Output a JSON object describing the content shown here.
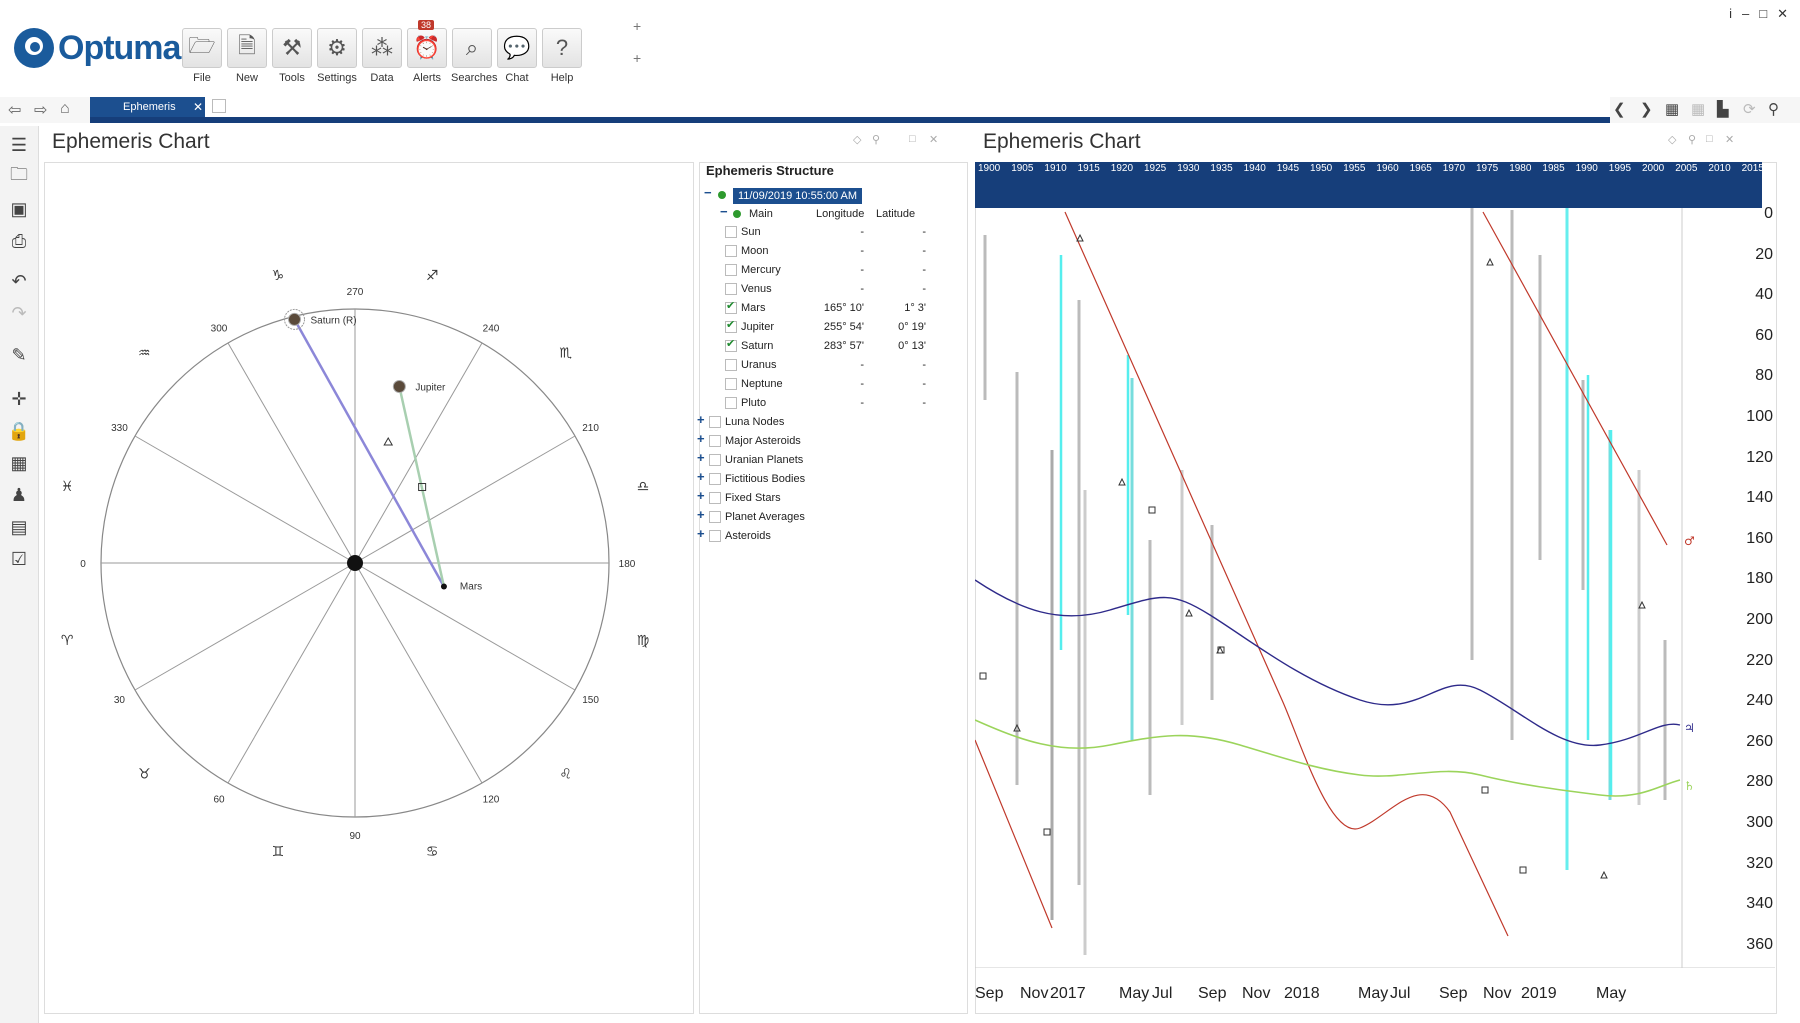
{
  "app": {
    "logo_text": "Optuma"
  },
  "toolbar": {
    "buttons": [
      {
        "label": "File",
        "icon": "folder-icon",
        "glyph": "🗁"
      },
      {
        "label": "New",
        "icon": "new-chart-icon",
        "glyph": "🗎"
      },
      {
        "label": "Tools",
        "icon": "tools-icon",
        "glyph": "⚒"
      },
      {
        "label": "Settings",
        "icon": "settings-icon",
        "glyph": "⚙"
      },
      {
        "label": "Data",
        "icon": "data-icon",
        "glyph": "⁂"
      },
      {
        "label": "Alerts",
        "icon": "alarm-icon",
        "glyph": "⏰",
        "badge": "38"
      },
      {
        "label": "Searches",
        "icon": "search-icon",
        "glyph": "⌕"
      },
      {
        "label": "Chat",
        "icon": "chat-icon",
        "glyph": "💬"
      },
      {
        "label": "Help",
        "icon": "help-icon",
        "glyph": "?"
      }
    ]
  },
  "window_controls": {
    "info": "i",
    "minimize": "–",
    "maximize": "□",
    "close": "✕"
  },
  "tabs": {
    "active": "Ephemeris",
    "close": "✕"
  },
  "left_panel": {
    "title": "Ephemeris Chart"
  },
  "wheel": {
    "degree_labels": [
      "270",
      "240",
      "210",
      "180",
      "150",
      "120",
      "90",
      "60",
      "30",
      "0",
      "330",
      "300"
    ],
    "zodiac_glyphs": [
      "♑",
      "♏",
      "♎",
      "♍",
      "♌",
      "♋",
      "♊",
      "♉",
      "♈",
      "♓",
      "♒",
      "♐"
    ],
    "planets": [
      {
        "name": "Saturn (R)",
        "longitude_deg": 283.95
      },
      {
        "name": "Jupiter",
        "longitude_deg": 255.9
      },
      {
        "name": "Mars",
        "longitude_deg": 165.17
      }
    ]
  },
  "structure": {
    "title": "Ephemeris Structure",
    "date": "11/09/2019 10:55:00 AM",
    "group": "Main",
    "col_longitude": "Longitude",
    "col_latitude": "Latitude",
    "bodies": [
      {
        "name": "Sun",
        "checked": false,
        "lon": "-",
        "lat": "-"
      },
      {
        "name": "Moon",
        "checked": false,
        "lon": "-",
        "lat": "-"
      },
      {
        "name": "Mercury",
        "checked": false,
        "lon": "-",
        "lat": "-"
      },
      {
        "name": "Venus",
        "checked": false,
        "lon": "-",
        "lat": "-"
      },
      {
        "name": "Mars",
        "checked": true,
        "lon": "165° 10'",
        "lat": "1° 3'"
      },
      {
        "name": "Jupiter",
        "checked": true,
        "lon": "255° 54'",
        "lat": "0° 19'"
      },
      {
        "name": "Saturn",
        "checked": true,
        "lon": "283° 57'",
        "lat": "0° 13'"
      },
      {
        "name": "Uranus",
        "checked": false,
        "lon": "-",
        "lat": "-"
      },
      {
        "name": "Neptune",
        "checked": false,
        "lon": "-",
        "lat": "-"
      },
      {
        "name": "Pluto",
        "checked": false,
        "lon": "-",
        "lat": "-"
      }
    ],
    "groups": [
      "Luna Nodes",
      "Major Asteroids",
      "Uranian Planets",
      "Fictitious Bodies",
      "Fixed Stars",
      "Planet Averages",
      "Asteroids"
    ]
  },
  "right_panel": {
    "title": "Ephemeris Chart"
  },
  "chart_data": {
    "type": "line",
    "year_band": [
      "1900",
      "1905",
      "1910",
      "1915",
      "1920",
      "1925",
      "1930",
      "1935",
      "1940",
      "1945",
      "1950",
      "1955",
      "1960",
      "1965",
      "1970",
      "1975",
      "1980",
      "1985",
      "1990",
      "1995",
      "2000",
      "2005",
      "2010",
      "2015"
    ],
    "y_ticks": [
      "0",
      "20",
      "40",
      "60",
      "80",
      "100",
      "120",
      "140",
      "160",
      "180",
      "200",
      "220",
      "240",
      "260",
      "280",
      "300",
      "320",
      "340",
      "360"
    ],
    "ylim": [
      0,
      360
    ],
    "x_ticks": [
      "Sep",
      "Nov",
      "2017",
      "May",
      "Jul",
      "Sep",
      "Nov",
      "2018",
      "May",
      "Jul",
      "Sep",
      "Nov",
      "2019",
      "May"
    ],
    "series": [
      {
        "name": "Mars",
        "color": "#c0392b",
        "glyph": "♂"
      },
      {
        "name": "Jupiter",
        "color": "#2e2a8a",
        "glyph": "♃"
      },
      {
        "name": "Saturn",
        "color": "#9bd45b",
        "glyph": "♄"
      }
    ]
  }
}
